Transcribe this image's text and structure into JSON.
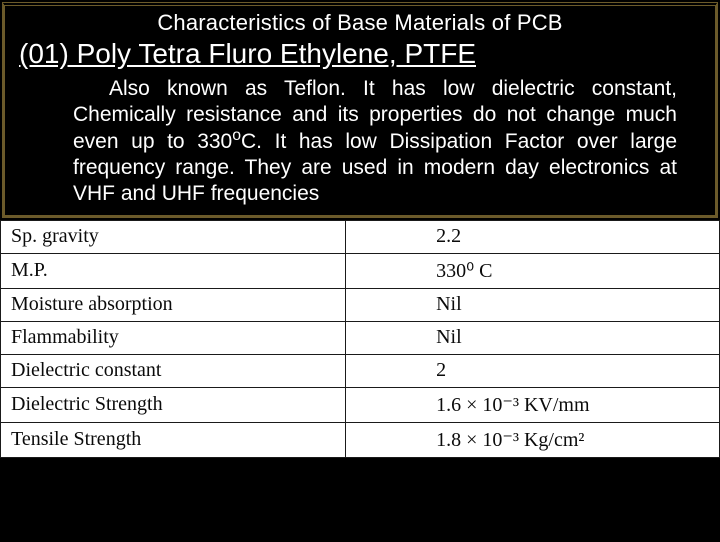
{
  "header": {
    "title": "Characteristics of Base Materials of PCB",
    "subtitle": "(01) Poly Tetra Fluro Ethylene, PTFE"
  },
  "body": {
    "text_before_sup": "Also known as Teflon. It has low dielectric constant, Chemically resistance and its properties do not change much even up to 330",
    "sup": "o",
    "text_after_sup": "C. It has low Dissipation Factor over large frequency range. They are used in modern day electronics at VHF and UHF frequencies"
  },
  "table": {
    "rows": [
      {
        "prop": "Sp. gravity",
        "val": "2.2"
      },
      {
        "prop": "M.P.",
        "val": "330⁰ C"
      },
      {
        "prop": "Moisture absorption",
        "val": "Nil"
      },
      {
        "prop": "Flammability",
        "val": "Nil"
      },
      {
        "prop": "Dielectric constant",
        "val": "2"
      },
      {
        "prop": "Dielectric Strength",
        "val": "1.6 × 10⁻³ KV/mm"
      },
      {
        "prop": "Tensile Strength",
        "val": "1.8 × 10⁻³ Kg/cm²"
      }
    ]
  },
  "colors": {
    "page_bg": "#000000",
    "frame_border": "#6b5a2a",
    "text": "#ffffff",
    "table_bg": "#ffffff",
    "table_text": "#0b0b0b",
    "table_border": "#1a1a1a"
  },
  "fonts": {
    "slide_font": "Arial",
    "table_font": "Times New Roman",
    "title_size_pt": 22,
    "subtitle_size_pt": 28,
    "body_size_pt": 21,
    "table_size_pt": 20
  }
}
